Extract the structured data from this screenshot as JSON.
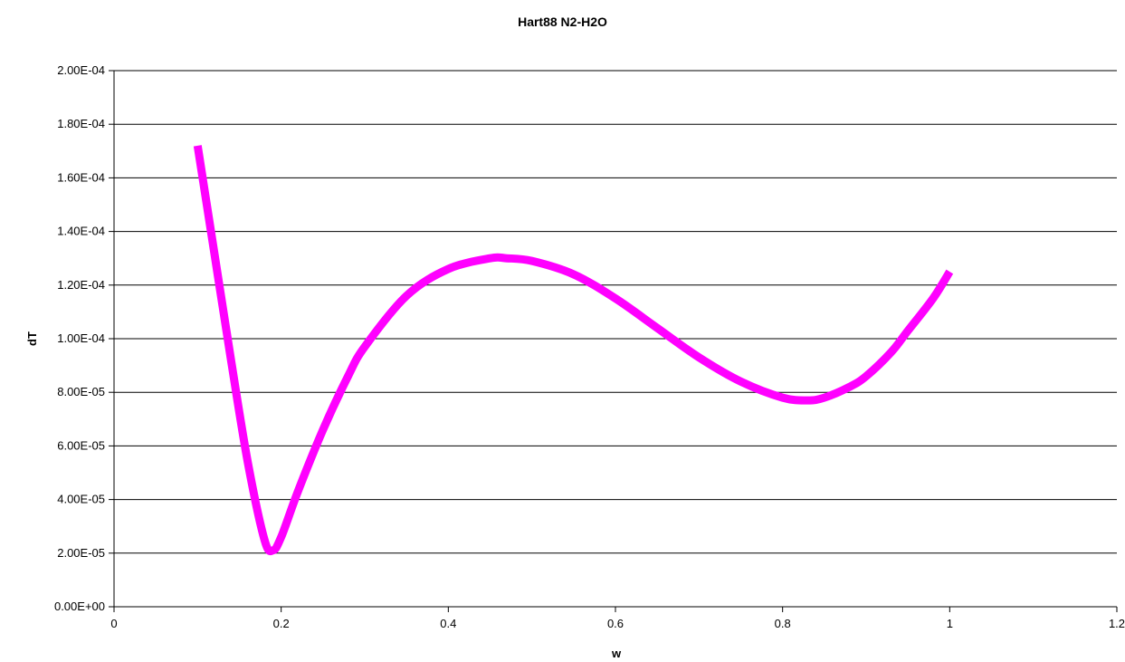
{
  "chart_data": {
    "type": "line",
    "title": "Hart88 N2-H2O",
    "xlabel": "w",
    "ylabel": "dT",
    "xlim": [
      0,
      1.2
    ],
    "ylim": [
      0,
      0.0002
    ],
    "x_ticks": [
      0,
      0.2,
      0.4,
      0.6,
      0.8,
      1.0,
      1.2
    ],
    "x_tick_labels": [
      "0",
      "0.2",
      "0.4",
      "0.6",
      "0.8",
      "1",
      "1.2"
    ],
    "y_ticks": [
      0,
      2e-05,
      4e-05,
      6e-05,
      8e-05,
      0.0001,
      0.00012,
      0.00014,
      0.00016,
      0.00018,
      0.0002
    ],
    "y_tick_labels": [
      "0.00E+00",
      "2.00E-05",
      "4.00E-05",
      "6.00E-05",
      "8.00E-05",
      "1.00E-04",
      "1.20E-04",
      "1.40E-04",
      "1.60E-04",
      "1.80E-04",
      "2.00E-04"
    ],
    "grid": "horizontal",
    "legend": "none",
    "series": [
      {
        "color": "#ff00ff",
        "x": [
          0.1,
          0.12,
          0.14,
          0.16,
          0.18,
          0.19,
          0.2,
          0.22,
          0.25,
          0.28,
          0.3,
          0.35,
          0.4,
          0.45,
          0.47,
          0.5,
          0.55,
          0.6,
          0.65,
          0.7,
          0.75,
          0.8,
          0.83,
          0.85,
          0.88,
          0.9,
          0.93,
          0.95,
          0.98,
          1.0
        ],
        "y": [
          0.000172,
          0.000132,
          9.2e-05,
          5.4e-05,
          2.5e-05,
          2.1e-05,
          2.6e-05,
          4.3e-05,
          6.6e-05,
          8.6e-05,
          9.7e-05,
          0.000116,
          0.000126,
          0.00013,
          0.00013,
          0.000129,
          0.000124,
          0.000115,
          0.000104,
          9.3e-05,
          8.4e-05,
          7.8e-05,
          7.7e-05,
          7.8e-05,
          8.2e-05,
          8.6e-05,
          9.5e-05,
          0.000103,
          0.000115,
          0.000125
        ]
      }
    ]
  }
}
